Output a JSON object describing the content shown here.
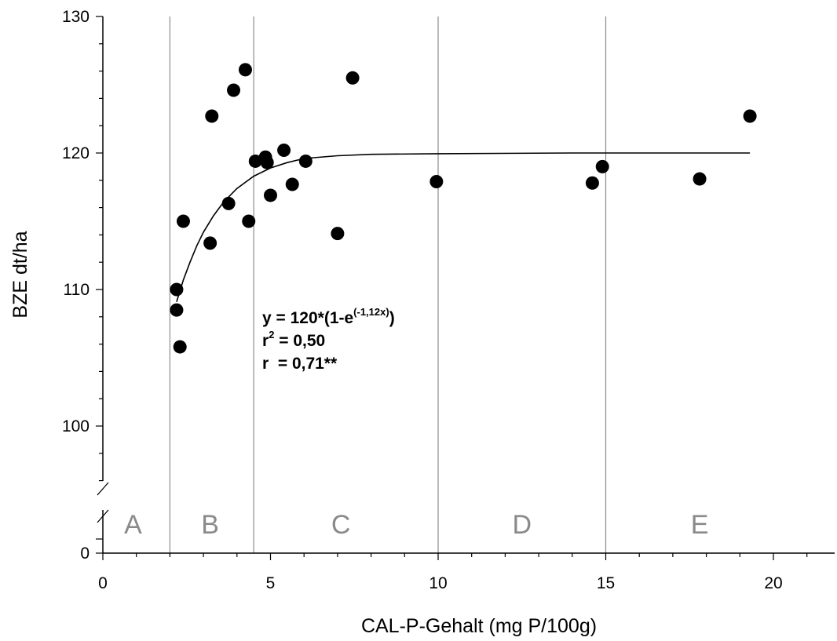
{
  "chart_data": {
    "type": "scatter",
    "xlabel": "CAL-P-Gehalt (mg P/100g)",
    "ylabel": "BZE dt/ha",
    "xlim": [
      0,
      21.8
    ],
    "x_ticks": [
      0,
      5,
      10,
      15,
      20
    ],
    "x_tick_labels": [
      "0",
      "5",
      "10",
      "15",
      "20"
    ],
    "ylim_upper": [
      95,
      130
    ],
    "y_ticks": [
      100,
      110,
      120,
      130
    ],
    "y_tick_labels": [
      "100",
      "110",
      "120",
      "130"
    ],
    "y_zero_label": "0",
    "axis_break": true,
    "grid": false,
    "class_boundaries": [
      2,
      4.5,
      10,
      15
    ],
    "class_labels": [
      {
        "label": "A",
        "x": 0.9
      },
      {
        "label": "B",
        "x": 3.2
      },
      {
        "label": "C",
        "x": 7.1
      },
      {
        "label": "D",
        "x": 12.5
      },
      {
        "label": "E",
        "x": 17.8
      }
    ],
    "series": [
      {
        "points": [
          {
            "x": 2.2,
            "y": 110.0
          },
          {
            "x": 2.2,
            "y": 108.5
          },
          {
            "x": 2.3,
            "y": 105.8
          },
          {
            "x": 2.4,
            "y": 115.0
          },
          {
            "x": 3.2,
            "y": 113.4
          },
          {
            "x": 3.25,
            "y": 122.7
          },
          {
            "x": 3.75,
            "y": 116.3
          },
          {
            "x": 3.9,
            "y": 124.6
          },
          {
            "x": 4.25,
            "y": 126.1
          },
          {
            "x": 4.35,
            "y": 115.0
          },
          {
            "x": 4.55,
            "y": 119.4
          },
          {
            "x": 4.85,
            "y": 119.7
          },
          {
            "x": 4.9,
            "y": 119.3
          },
          {
            "x": 5.0,
            "y": 116.9
          },
          {
            "x": 5.4,
            "y": 120.2
          },
          {
            "x": 5.65,
            "y": 117.7
          },
          {
            "x": 6.05,
            "y": 119.4
          },
          {
            "x": 7.0,
            "y": 114.1
          },
          {
            "x": 7.45,
            "y": 125.5
          },
          {
            "x": 9.95,
            "y": 117.9
          },
          {
            "x": 14.6,
            "y": 117.8
          },
          {
            "x": 14.9,
            "y": 119.0
          },
          {
            "x": 17.8,
            "y": 118.1
          },
          {
            "x": 19.3,
            "y": 122.7
          }
        ]
      }
    ],
    "fit_curve": {
      "x_range": [
        2.2,
        19.3
      ],
      "curve_points": [
        {
          "x": 2.2,
          "y": 109.1
        },
        {
          "x": 2.4,
          "y": 110.7
        },
        {
          "x": 2.6,
          "y": 112.0
        },
        {
          "x": 2.8,
          "y": 113.2
        },
        {
          "x": 3.0,
          "y": 114.2
        },
        {
          "x": 3.3,
          "y": 115.4
        },
        {
          "x": 3.6,
          "y": 116.4
        },
        {
          "x": 4.0,
          "y": 117.4
        },
        {
          "x": 4.5,
          "y": 118.3
        },
        {
          "x": 5.0,
          "y": 118.9
        },
        {
          "x": 5.5,
          "y": 119.3
        },
        {
          "x": 6.0,
          "y": 119.6
        },
        {
          "x": 7.0,
          "y": 119.8
        },
        {
          "x": 8.0,
          "y": 119.9
        },
        {
          "x": 10.0,
          "y": 119.95
        },
        {
          "x": 14.0,
          "y": 120.0
        },
        {
          "x": 19.3,
          "y": 120.0
        }
      ]
    },
    "equation": {
      "line1_prefix": "y = 120*(1-e",
      "line1_sup": "(-1,12x)",
      "line1_suffix": ")",
      "line2_prefix": "r",
      "line2_sup": "2",
      "line2_suffix": " = 0,50",
      "line3": "r  = 0,71**"
    }
  }
}
